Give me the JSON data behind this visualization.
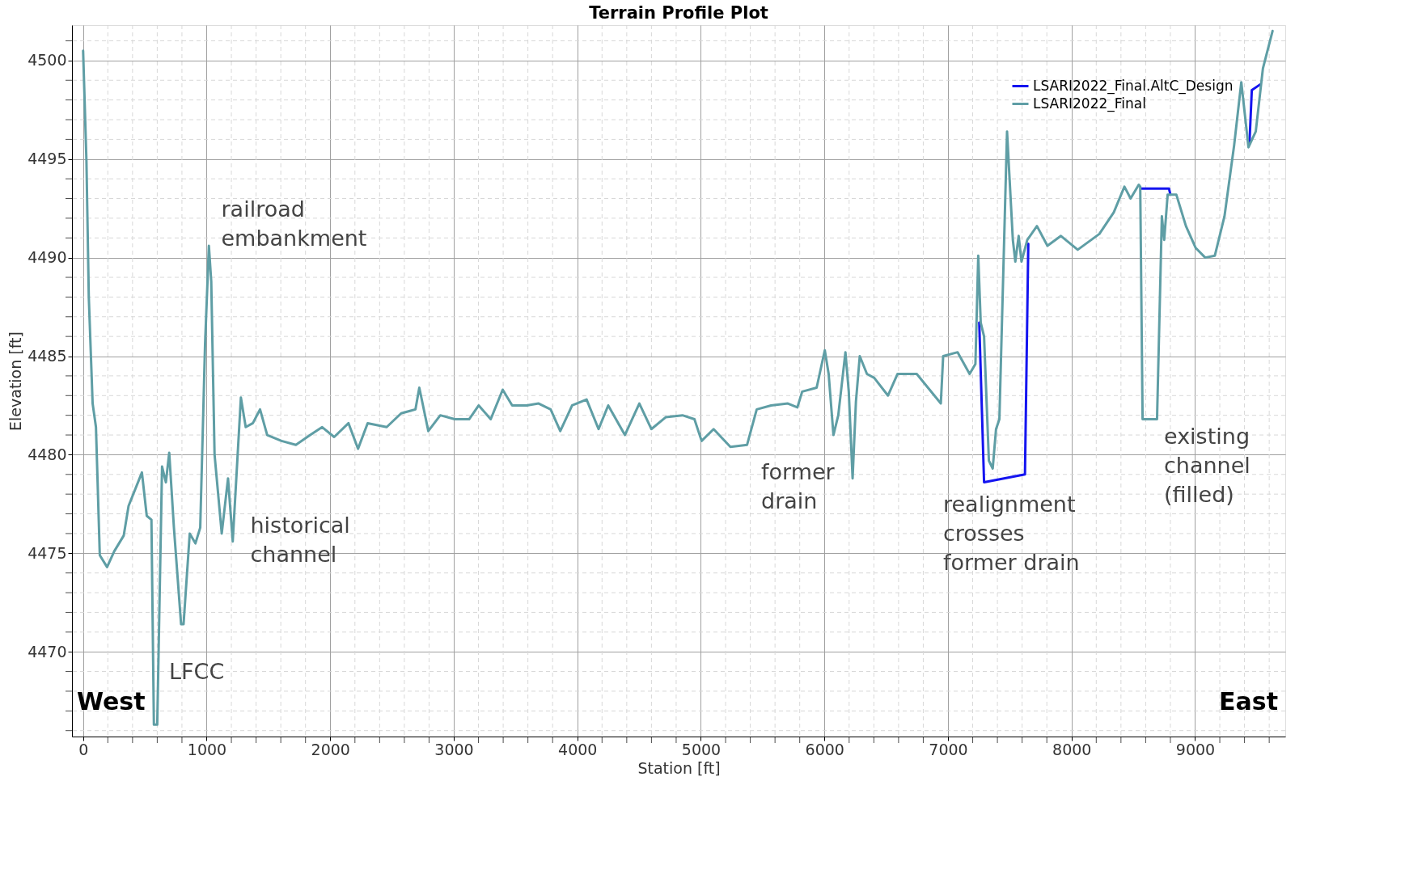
{
  "chart_data": {
    "type": "line",
    "title": "Terrain Profile Plot",
    "xlabel": "Station [ft]",
    "ylabel": "Elevation [ft]",
    "xlim": [
      -90,
      9730
    ],
    "ylim": [
      4465.7,
      4501.8
    ],
    "xticks": [
      0,
      1000,
      2000,
      3000,
      4000,
      5000,
      6000,
      7000,
      8000,
      9000
    ],
    "yticks": [
      4470,
      4475,
      4480,
      4485,
      4490,
      4495,
      4500
    ],
    "grid": true,
    "legend": "top right",
    "line_style": "solid",
    "series": [
      {
        "name": "LSARI2022_Final.AltC_Design",
        "color": "#1414f0",
        "x": [
          7253,
          7292,
          7623,
          7650,
          7660,
          8560,
          8789,
          8800,
          9435,
          9440,
          9459,
          9530
        ],
        "values": [
          4486.7,
          4478.6,
          4479,
          4490.7,
          null,
          4493.5,
          4493.5,
          4493.2,
          null,
          4495.8,
          4498.5,
          4498.8
        ]
      },
      {
        "name": "LSARI2022_Final",
        "color": "#5f9ea5",
        "x": [
          0,
          27,
          46,
          77,
          104,
          135,
          194,
          252,
          329,
          368,
          476,
          515,
          553,
          573,
          600,
          639,
          670,
          697,
          735,
          793,
          813,
          863,
          909,
          948,
          987,
          1018,
          1037,
          1064,
          1122,
          1173,
          1211,
          1277,
          1316,
          1374,
          1432,
          1490,
          1606,
          1722,
          1838,
          1935,
          2032,
          2148,
          2225,
          2303,
          2457,
          2574,
          2690,
          2721,
          2794,
          2891,
          3008,
          3124,
          3202,
          3299,
          3396,
          3473,
          3590,
          3687,
          3784,
          3862,
          3958,
          4075,
          4172,
          4250,
          4385,
          4502,
          4599,
          4715,
          4851,
          4948,
          5006,
          5103,
          5239,
          5374,
          5452,
          5568,
          5704,
          5781,
          5820,
          5937,
          6003,
          6034,
          6073,
          6112,
          6170,
          6197,
          6228,
          6255,
          6286,
          6344,
          6403,
          6514,
          6592,
          6747,
          6942,
          6961,
          7078,
          7175,
          7222,
          7245,
          7265,
          7292,
          7331,
          7362,
          7389,
          7416,
          7478,
          7525,
          7545,
          7572,
          7595,
          7642,
          7720,
          7805,
          7914,
          8050,
          8225,
          8342,
          8428,
          8478,
          8544,
          8556,
          8575,
          8692,
          8731,
          8750,
          8778,
          8848,
          8926,
          9004,
          9082,
          9160,
          9238,
          9316,
          9374,
          9432,
          9491,
          9549,
          9627
        ],
        "values": [
          4500.5,
          4494.9,
          4488,
          4482.6,
          4481.4,
          4474.9,
          4474.3,
          4475.1,
          4475.9,
          4477.4,
          4479.1,
          4476.9,
          4476.7,
          4466.3,
          4466.3,
          4479.4,
          4478.6,
          4480.1,
          4476.3,
          4471.4,
          4471.4,
          4476,
          4475.5,
          4476.3,
          4485.6,
          4490.6,
          4488.8,
          4480,
          4476,
          4478.8,
          4475.6,
          4482.9,
          4481.4,
          4481.6,
          4482.3,
          4481,
          4480.7,
          4480.5,
          4481,
          4481.4,
          4480.9,
          4481.6,
          4480.3,
          4481.6,
          4481.4,
          4482.1,
          4482.3,
          4483.4,
          4481.2,
          4482,
          4481.8,
          4481.8,
          4482.5,
          4481.8,
          4483.3,
          4482.5,
          4482.5,
          4482.6,
          4482.3,
          4481.2,
          4482.5,
          4482.8,
          4481.3,
          4482.5,
          4481,
          4482.6,
          4481.3,
          4481.9,
          4482,
          4481.8,
          4480.7,
          4481.3,
          4480.4,
          4480.5,
          4482.3,
          4482.5,
          4482.6,
          4482.4,
          4483.2,
          4483.4,
          4485.3,
          4484.1,
          4481,
          4482,
          4485.2,
          4483.2,
          4478.8,
          4482.7,
          4485,
          4484.1,
          4483.9,
          4483,
          4484.1,
          4484.1,
          4482.6,
          4485,
          4485.2,
          4484.1,
          4484.6,
          4490.1,
          4486.7,
          4486,
          4479.7,
          4479.3,
          4481.3,
          4481.8,
          4496.4,
          4490.9,
          4489.8,
          4491.1,
          4489.8,
          4490.9,
          4491.6,
          4490.6,
          4491.1,
          4490.4,
          4491.2,
          4492.3,
          4493.6,
          4493,
          4493.7,
          4493.6,
          4481.8,
          4481.8,
          4492.1,
          4490.9,
          4493.2,
          4493.2,
          4491.6,
          4490.5,
          4490,
          4490.1,
          4492.1,
          4495.7,
          4498.9,
          4495.6,
          4496.4,
          4499.6,
          4501.5
        ]
      }
    ],
    "annotations": [
      "railroad\nembankment",
      "historical\nchannel",
      "LFCC",
      "West",
      "former\ndrain",
      "realignment\ncrosses\nformer drain",
      "existing\nchannel\n(filled)",
      "East"
    ]
  }
}
